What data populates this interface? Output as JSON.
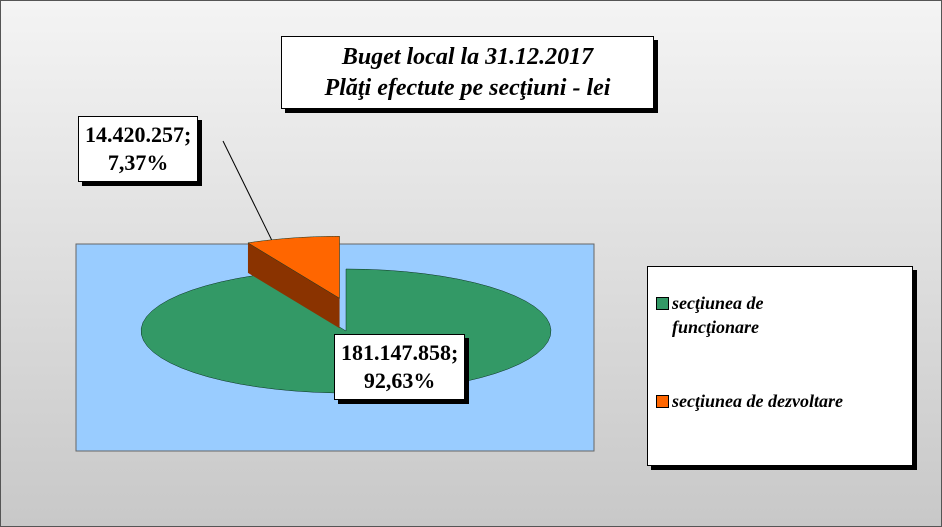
{
  "chart_data": {
    "type": "pie",
    "title": [
      "Buget local la 31.12.2017",
      "Plăţi efectute pe secţiuni - lei"
    ],
    "categories": [
      "secţiunea de funcţionare",
      "secţiunea de dezvoltare"
    ],
    "values": [
      181147858,
      14420257
    ],
    "value_labels": [
      "181.147.858;",
      "14.420.257;"
    ],
    "percents": [
      92.63,
      7.37
    ],
    "percent_labels": [
      "92,63%",
      "7,37%"
    ],
    "colors": [
      "#339966",
      "#ff6600"
    ],
    "side_colors": [
      "#1f6b45",
      "#8a3300"
    ],
    "legend": "right"
  }
}
